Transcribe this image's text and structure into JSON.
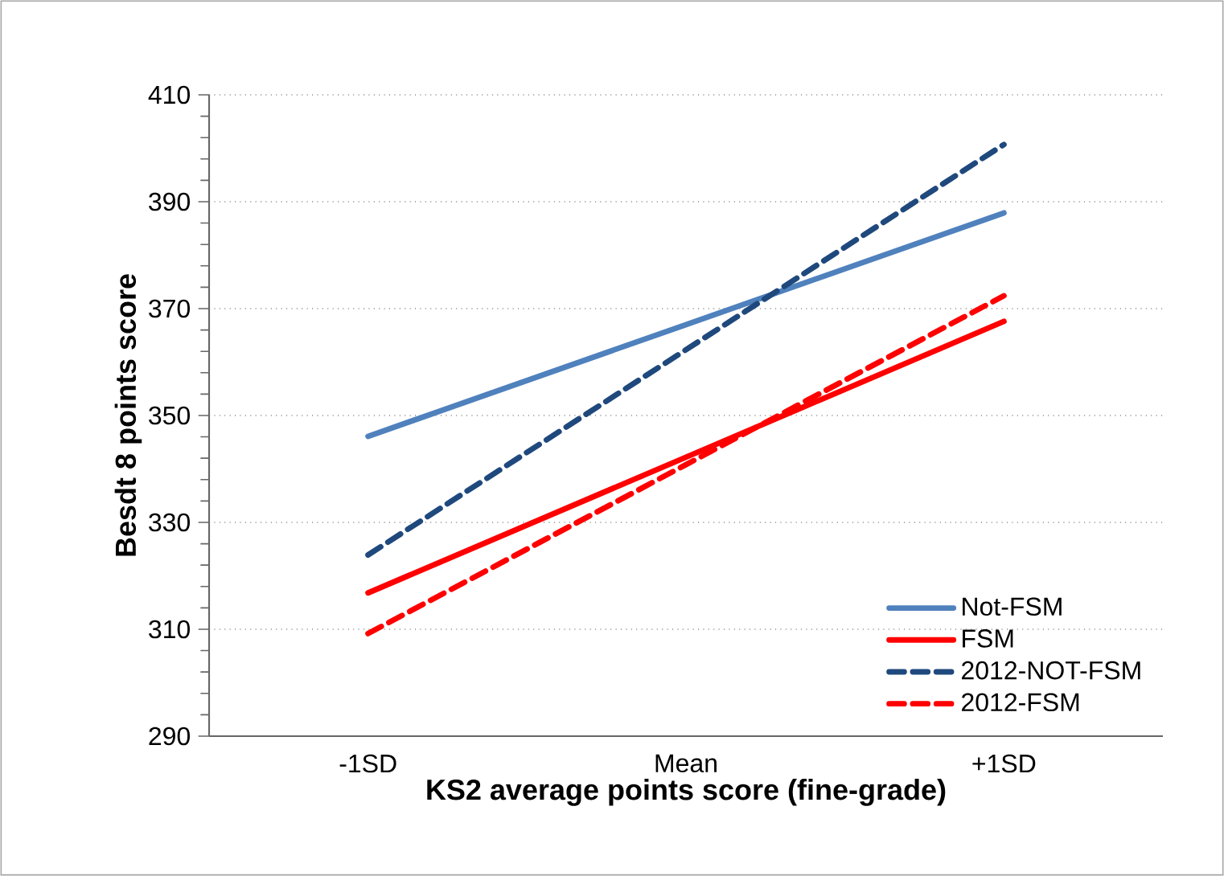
{
  "chart_data": {
    "type": "line",
    "xlabel": "KS2 average points score (fine-grade)",
    "ylabel": "Besdt 8 points score",
    "categories": [
      "-1SD",
      "Mean",
      "+1SD"
    ],
    "series": [
      {
        "name": "Not-FSM",
        "color": "#4f81bd",
        "line_style": "solid",
        "values": [
          346.1,
          367.0,
          387.9
        ]
      },
      {
        "name": "FSM",
        "color": "#ff0000",
        "line_style": "solid",
        "values": [
          316.8,
          342.2,
          367.6
        ]
      },
      {
        "name": "2012-NOT-FSM",
        "color": "#1f497d",
        "line_style": "dashed",
        "values": [
          323.9,
          362.3,
          400.7
        ]
      },
      {
        "name": "2012-FSM",
        "color": "#ff0000",
        "line_style": "dashed",
        "values": [
          309.2,
          340.8,
          372.4
        ]
      }
    ],
    "ylim": [
      290,
      410
    ],
    "yticks": [
      290,
      310,
      330,
      350,
      370,
      390,
      410
    ],
    "grid": "y",
    "legend": "bottom right"
  }
}
